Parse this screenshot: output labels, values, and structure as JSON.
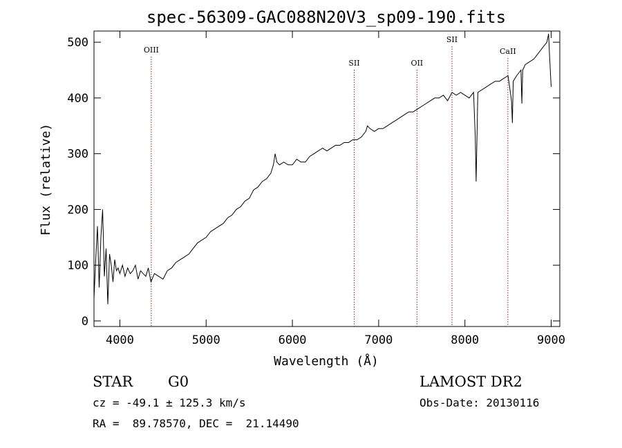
{
  "chart_data": {
    "type": "line",
    "title": "spec-56309-GAC088N20V3_sp09-190.fits",
    "xlabel": "Wavelength (Å)",
    "ylabel": "Flux (relative)",
    "xlim": [
      3700,
      9100
    ],
    "ylim": [
      -10,
      520
    ],
    "xticks": [
      4000,
      5000,
      6000,
      7000,
      8000,
      9000
    ],
    "yticks": [
      0,
      100,
      200,
      300,
      400,
      500
    ],
    "grid": false,
    "series": [
      {
        "x": [
          3700,
          3720,
          3740,
          3760,
          3780,
          3800,
          3820,
          3840,
          3860,
          3880,
          3900,
          3920,
          3940,
          3960,
          3980,
          4000,
          4030,
          4060,
          4090,
          4120,
          4150,
          4180,
          4210,
          4240,
          4270,
          4300,
          4330,
          4360,
          4400,
          4450,
          4500,
          4550,
          4600,
          4650,
          4700,
          4750,
          4800,
          4850,
          4900,
          4950,
          5000,
          5050,
          5100,
          5150,
          5200,
          5250,
          5300,
          5350,
          5400,
          5450,
          5500,
          5550,
          5600,
          5650,
          5700,
          5750,
          5780,
          5800,
          5820,
          5850,
          5900,
          5950,
          6000,
          6050,
          6100,
          6150,
          6200,
          6250,
          6300,
          6350,
          6400,
          6450,
          6500,
          6550,
          6600,
          6650,
          6700,
          6750,
          6800,
          6850,
          6870,
          6900,
          6950,
          7000,
          7050,
          7100,
          7150,
          7200,
          7250,
          7300,
          7350,
          7400,
          7450,
          7500,
          7550,
          7600,
          7650,
          7700,
          7750,
          7800,
          7850,
          7900,
          7950,
          8000,
          8050,
          8100,
          8120,
          8130,
          8140,
          8150,
          8200,
          8250,
          8300,
          8350,
          8400,
          8450,
          8500,
          8540,
          8550,
          8560,
          8600,
          8650,
          8660,
          8670,
          8700,
          8750,
          8800,
          8850,
          8900,
          8950,
          8970,
          8980,
          9000
        ],
        "y": [
          40,
          110,
          170,
          60,
          150,
          200,
          80,
          130,
          30,
          120,
          100,
          70,
          110,
          90,
          95,
          85,
          100,
          80,
          95,
          85,
          90,
          100,
          75,
          90,
          85,
          80,
          95,
          70,
          85,
          80,
          75,
          90,
          95,
          105,
          110,
          115,
          120,
          130,
          140,
          145,
          150,
          160,
          165,
          170,
          175,
          185,
          190,
          200,
          205,
          215,
          220,
          235,
          240,
          250,
          255,
          265,
          280,
          300,
          285,
          280,
          285,
          280,
          280,
          290,
          285,
          285,
          295,
          300,
          305,
          310,
          305,
          310,
          315,
          315,
          320,
          320,
          325,
          325,
          330,
          340,
          350,
          345,
          340,
          345,
          345,
          350,
          355,
          360,
          365,
          370,
          375,
          375,
          380,
          385,
          390,
          395,
          400,
          400,
          405,
          395,
          410,
          405,
          410,
          405,
          400,
          410,
          330,
          250,
          330,
          410,
          415,
          420,
          425,
          430,
          430,
          435,
          440,
          395,
          355,
          430,
          440,
          450,
          390,
          450,
          460,
          465,
          470,
          480,
          490,
          500,
          515,
          480,
          420
        ],
        "line_color": "#000000"
      }
    ],
    "lines": [
      {
        "label": "OIII",
        "x": 4364
      },
      {
        "label": "SII",
        "x": 6716
      },
      {
        "label": "OII",
        "x": 7444
      },
      {
        "label": "SII",
        "x": 7850
      },
      {
        "label": "CaII",
        "x": 8498
      }
    ],
    "line_color": "#8b1a1a"
  },
  "info": {
    "object_class": "STAR",
    "subclass": "G0",
    "survey": "LAMOST DR2",
    "redshift": "cz = -49.1 ± 125.3 km/s",
    "obs_date": "Obs-Date: 20130116",
    "coords": "RA =  89.78570, DEC =  21.14490"
  }
}
